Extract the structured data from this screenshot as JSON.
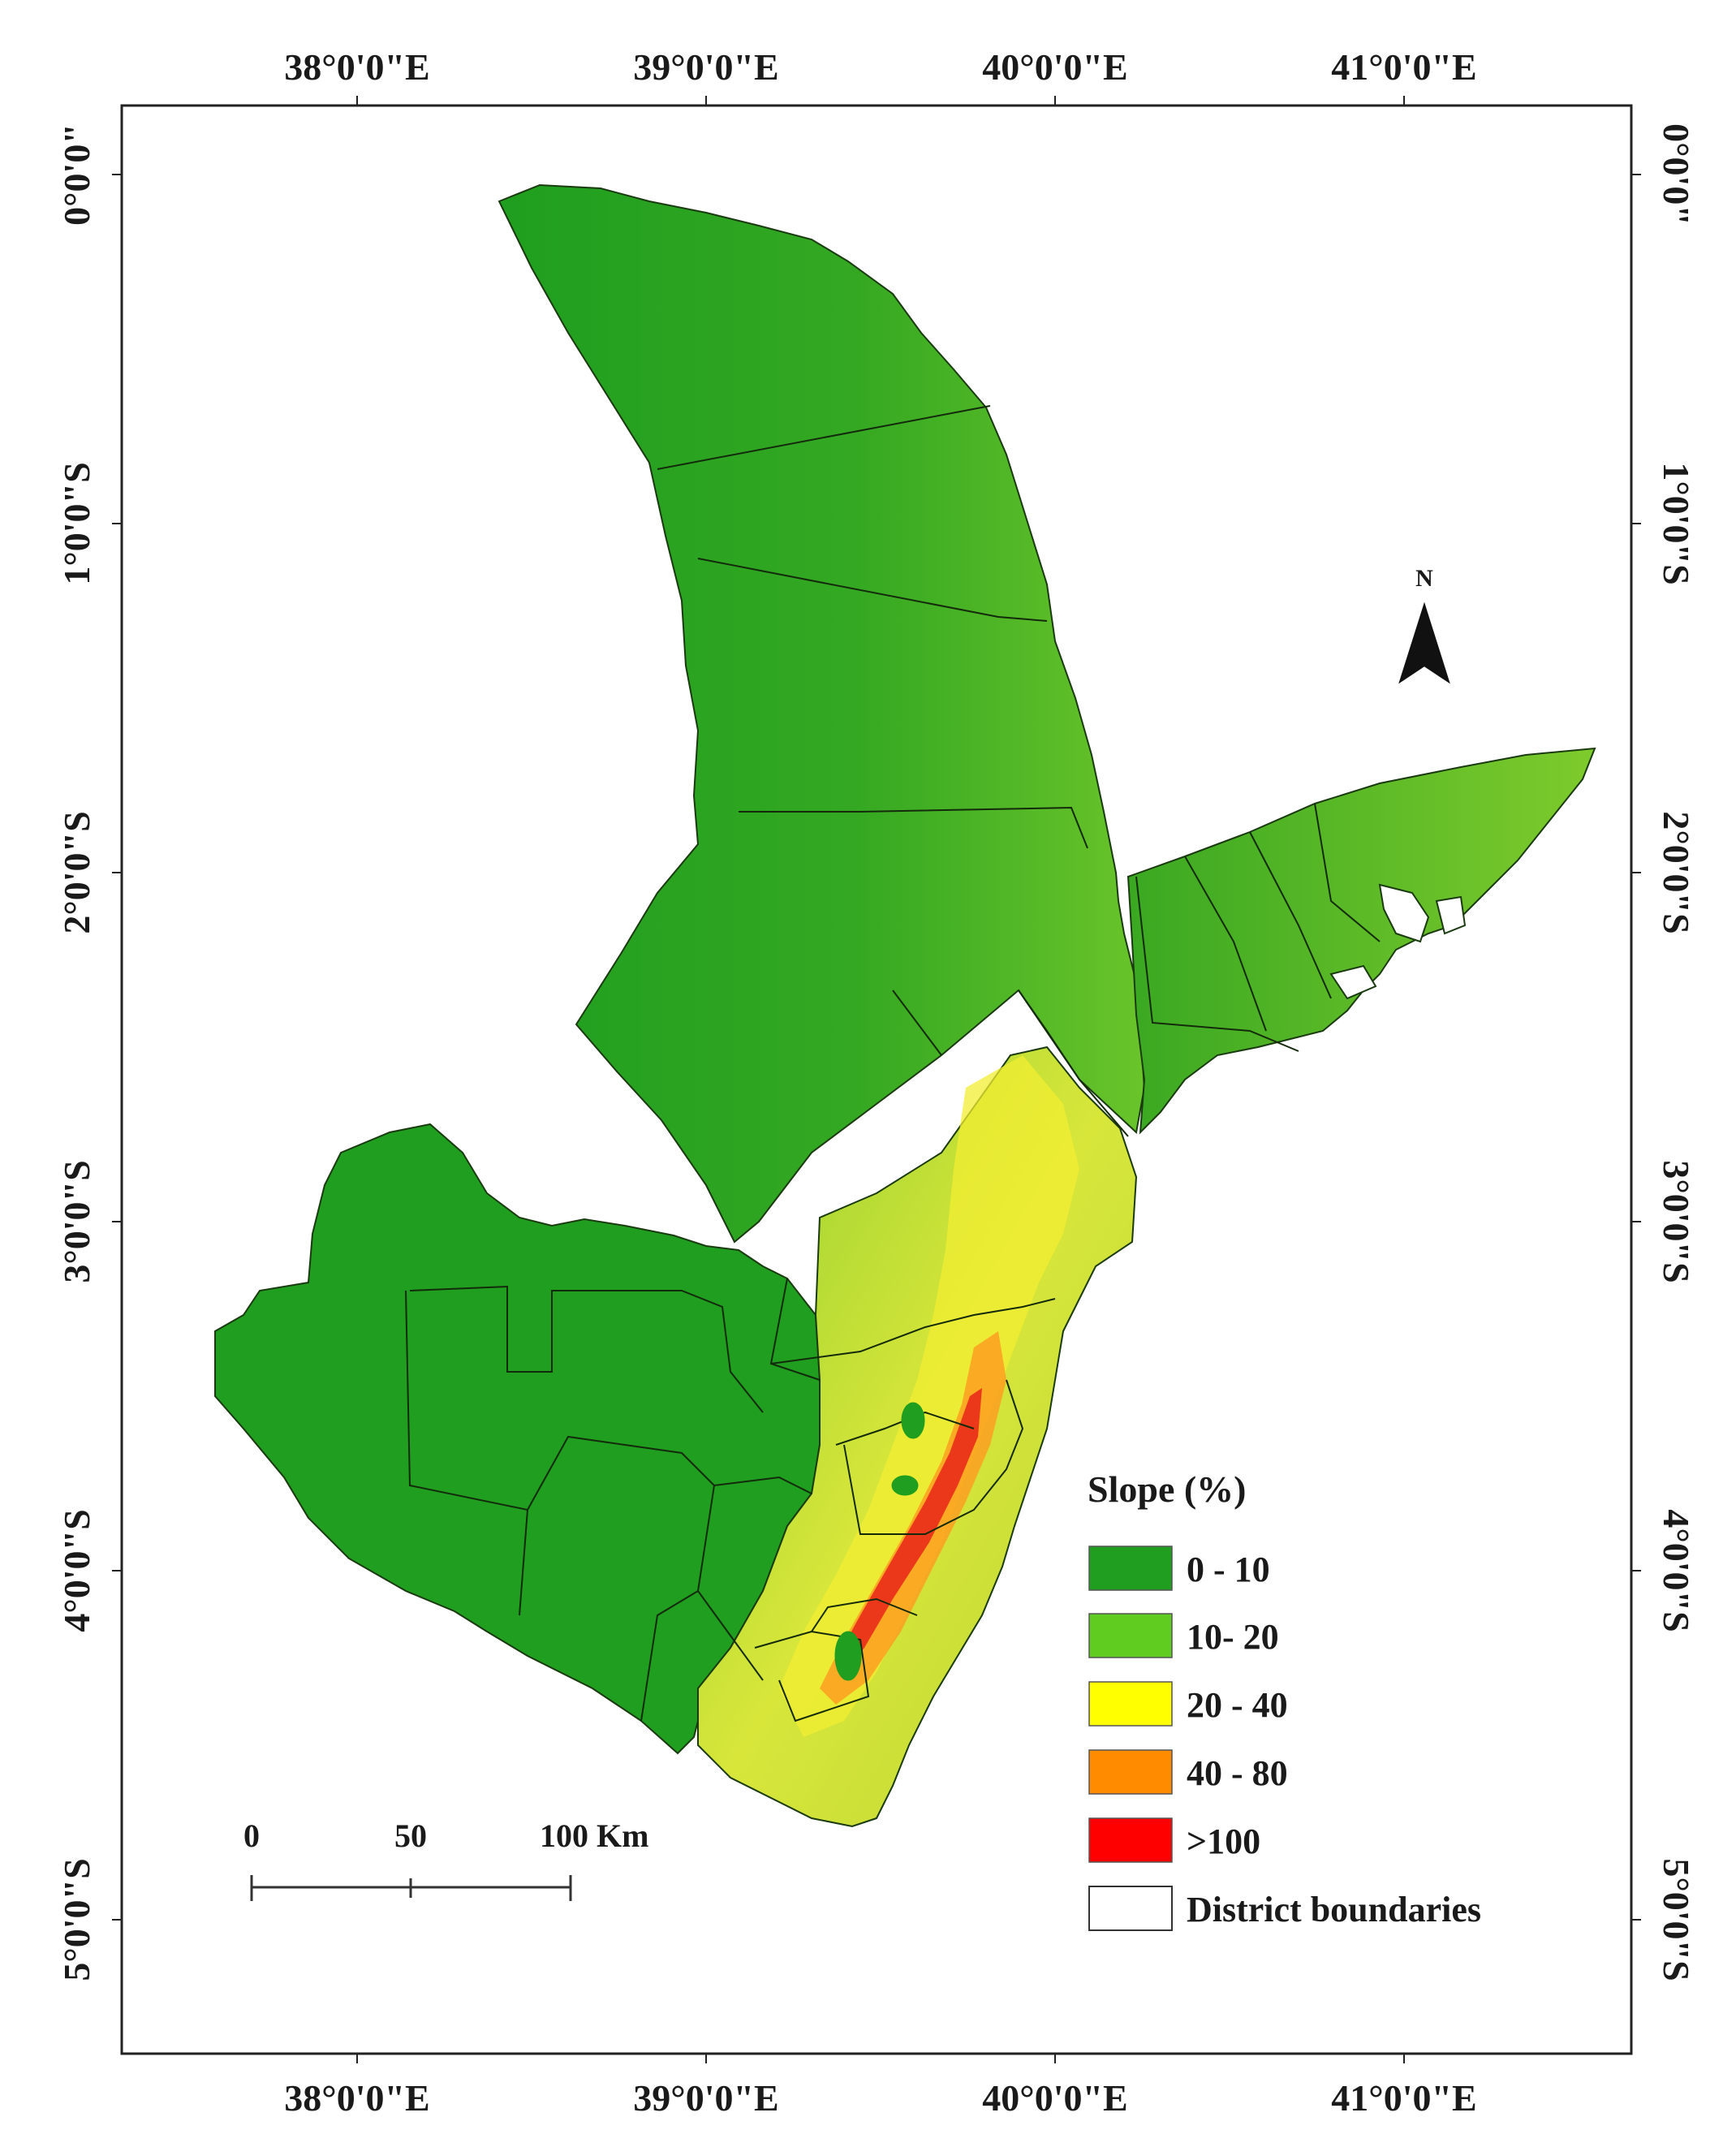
{
  "map": {
    "top_lon_labels": [
      "38°0'0\"E",
      "39°0'0\"E",
      "40°0'0\"E",
      "41°0'0\"E"
    ],
    "bottom_lon_labels": [
      "38°0'0\"E",
      "39°0'0\"E",
      "40°0'0\"E",
      "41°0'0\"E"
    ],
    "left_lat_labels": [
      "0°0'0\"",
      "1°0'0\"S",
      "2°0'0\"S",
      "3°0'0\"S",
      "4°0'0\"S",
      "5°0'0\"S"
    ],
    "right_lat_labels": [
      "0°0'0\"",
      "1°0'0\"S",
      "2°0'0\"S",
      "3°0'0\"S",
      "4°0'0\"S",
      "5°0'0\"S"
    ],
    "north_label": "N"
  },
  "legend": {
    "title": "Slope (%)",
    "items": [
      {
        "label": "0 - 10",
        "color": "#1f9e1f"
      },
      {
        "label": "10- 20",
        "color": "#5fcc1f"
      },
      {
        "label": "20 - 40",
        "color": "#ffff00"
      },
      {
        "label": "40 - 80",
        "color": "#ff8c00"
      },
      {
        "label": ">100",
        "color": "#ff0000"
      },
      {
        "label": "District boundaries",
        "color": "#ffffff"
      }
    ]
  },
  "scale_bar": {
    "ticks": [
      "0",
      "50",
      "100 Km"
    ]
  }
}
